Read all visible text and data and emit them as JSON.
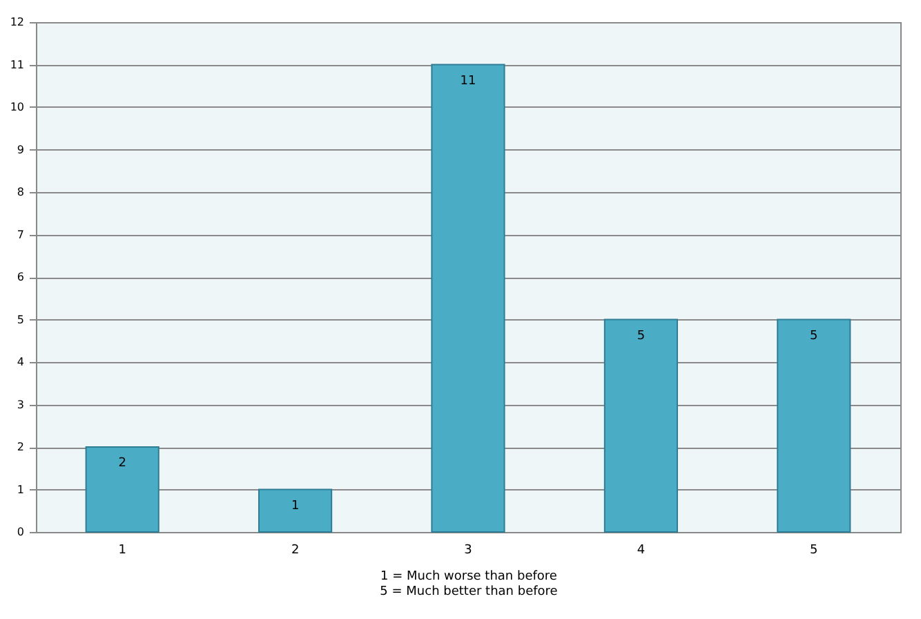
{
  "chart_data": {
    "type": "bar",
    "categories": [
      "1",
      "2",
      "3",
      "4",
      "5"
    ],
    "values": [
      2,
      1,
      11,
      5,
      5
    ],
    "color": "#4bacc6",
    "xlabel": "1 = Much worse than before\n5 = Much better than before",
    "ylim": [
      0,
      12
    ],
    "yticks": [
      0,
      1,
      2,
      3,
      4,
      5,
      6,
      7,
      8,
      9,
      10,
      11,
      12
    ],
    "grid": "y",
    "data_labels": true
  }
}
